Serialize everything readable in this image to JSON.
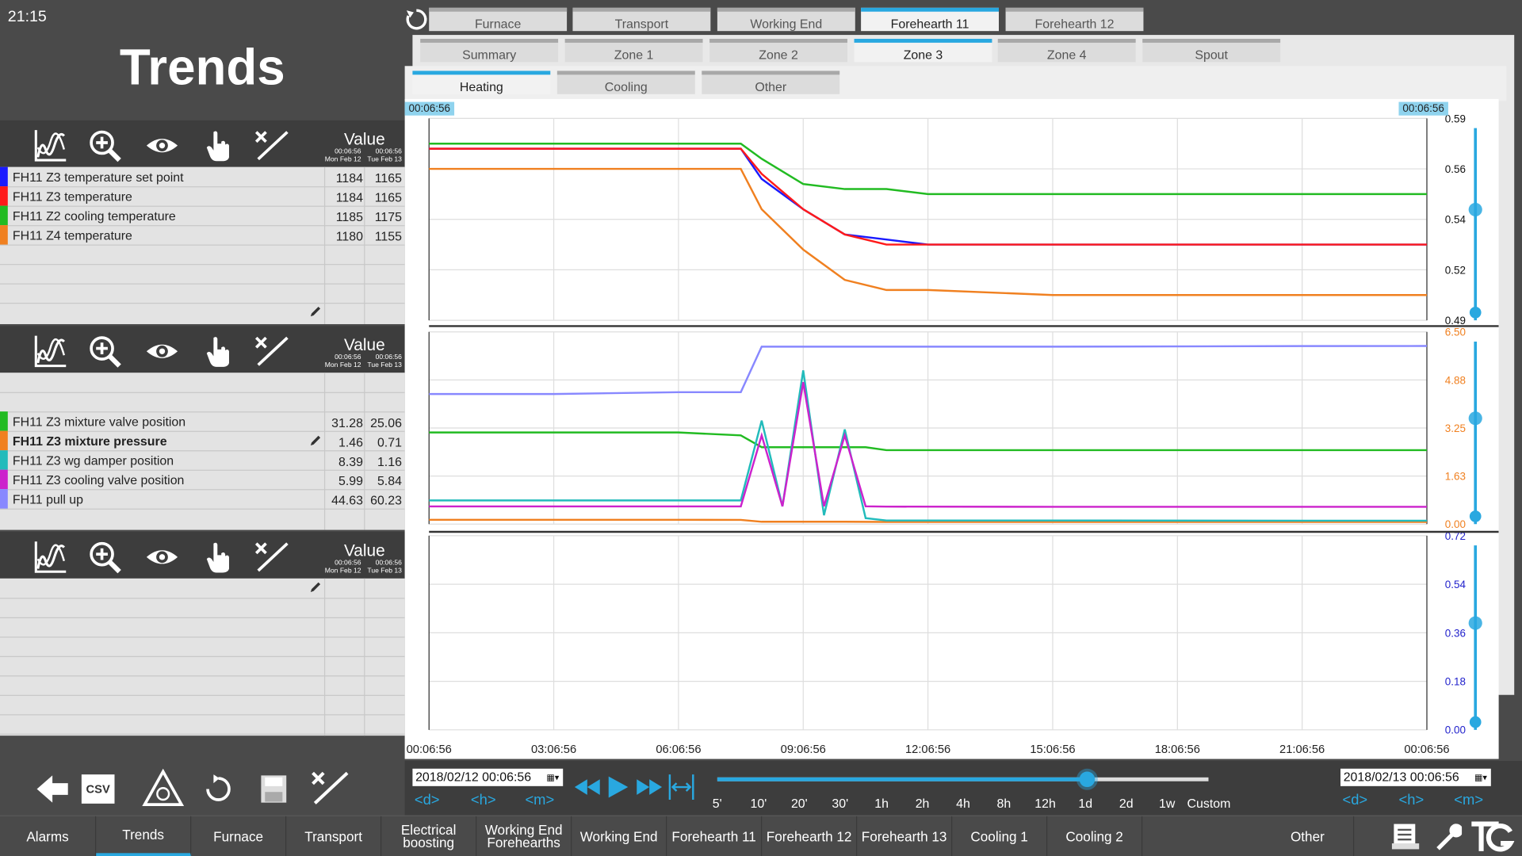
{
  "clock": "21:15",
  "page_title": "Trends",
  "top_tabs": [
    "Furnace",
    "Transport",
    "Working End",
    "Forehearth 11",
    "Forehearth 12"
  ],
  "zone_tabs": [
    "Summary",
    "Zone 1",
    "Zone 2",
    "Zone 3",
    "Zone 4",
    "Spout"
  ],
  "sub_tabs": [
    "Heating",
    "Cooling",
    "Other"
  ],
  "active": {
    "top": "Forehearth 11",
    "zone": "Zone 3",
    "sub": "Heating"
  },
  "cursor_time_left": "00:06:56",
  "cursor_time_right": "00:06:56",
  "value_header": {
    "title": "Value",
    "t1": "00:06:56",
    "d1": "Mon Feb 12",
    "t2": "00:06:56",
    "d2": "Tue Feb 13"
  },
  "panel1_rows": [
    {
      "label": "FH11 Z3 temperature set point",
      "color": "#1a1aff",
      "v1": "1184",
      "v2": "1165"
    },
    {
      "label": "FH11 Z3 temperature",
      "color": "#ff1a1a",
      "v1": "1184",
      "v2": "1165"
    },
    {
      "label": "FH11 Z2 cooling temperature",
      "color": "#22bb22",
      "v1": "1185",
      "v2": "1175"
    },
    {
      "label": "FH11 Z4 temperature",
      "color": "#f08020",
      "v1": "1180",
      "v2": "1155"
    }
  ],
  "panel2_rows": [
    {
      "label": "FH11 Z3 mixture valve position",
      "color": "#22bb22",
      "v1": "31.28",
      "v2": "25.06"
    },
    {
      "label": "FH11 Z3 mixture pressure",
      "color": "#f08020",
      "v1": "1.46",
      "v2": "0.71"
    },
    {
      "label": "FH11 Z3 wg damper position",
      "color": "#22bbbb",
      "v1": "8.39",
      "v2": "1.16"
    },
    {
      "label": "FH11 Z3 cooling valve position",
      "color": "#cc22cc",
      "v1": "5.99",
      "v2": "5.84"
    },
    {
      "label": "FH11 pull up",
      "color": "#8888ff",
      "v1": "44.63",
      "v2": "60.23"
    }
  ],
  "x_ticks": [
    "00:06:56",
    "03:06:56",
    "06:06:56",
    "09:06:56",
    "12:06:56",
    "15:06:56",
    "18:06:56",
    "21:06:56",
    "00:06:56"
  ],
  "axis1_ticks": [
    "0.59",
    "0.56",
    "0.54",
    "0.52",
    "0.49"
  ],
  "axis2_ticks": [
    "6.50",
    "4.88",
    "3.25",
    "1.63",
    "0.00"
  ],
  "axis3_ticks": [
    "0.72",
    "0.54",
    "0.36",
    "0.18",
    "0.00"
  ],
  "colors": {
    "axis2": "#f08020",
    "axis3": "#2222cc",
    "accent": "#29a8e0"
  },
  "date_start": "2018/02/12 00:06:56",
  "date_end": "2018/02/13 00:06:56",
  "nav_units": [
    "d",
    "h",
    "m"
  ],
  "time_scales": [
    "5'",
    "10'",
    "20'",
    "30'",
    "1h",
    "2h",
    "4h",
    "8h",
    "12h",
    "1d",
    "2d",
    "1w",
    "Custom"
  ],
  "selected_scale": "1d",
  "csv_label": "CSV",
  "footer_items": [
    "Alarms",
    "Trends",
    "Furnace",
    "Transport",
    "Electrical boosting",
    "Working End Forehearths",
    "Working End",
    "Forehearth 11",
    "Forehearth 12",
    "Forehearth 13",
    "Cooling 1",
    "Cooling 2",
    "Other"
  ],
  "chart_data": [
    {
      "type": "line",
      "x": [
        "00:06:56",
        "03:06:56",
        "06:06:56",
        "07:36:56",
        "08:06:56",
        "09:06:56",
        "10:06:56",
        "11:06:56",
        "12:06:56",
        "15:06:56",
        "18:06:56",
        "21:06:56",
        "00:06:56"
      ],
      "series": [
        {
          "name": "FH11 Z3 temperature set point",
          "values": [
            1184,
            1184,
            1184,
            1184,
            1178,
            1172,
            1167,
            1166,
            1165,
            1165,
            1165,
            1165,
            1165
          ]
        },
        {
          "name": "FH11 Z3 temperature",
          "values": [
            1184,
            1184,
            1184,
            1184,
            1179,
            1172,
            1167,
            1165,
            1165,
            1165,
            1165,
            1165,
            1165
          ]
        },
        {
          "name": "FH11 Z2 cooling temperature",
          "values": [
            1185,
            1185,
            1185,
            1185,
            1182,
            1177,
            1176,
            1176,
            1175,
            1175,
            1175,
            1175,
            1175
          ]
        },
        {
          "name": "FH11 Z4 temperature",
          "values": [
            1180,
            1180,
            1180,
            1180,
            1172,
            1164,
            1158,
            1156,
            1156,
            1155,
            1155,
            1155,
            1155
          ]
        }
      ],
      "ylim": [
        1150,
        1190
      ]
    },
    {
      "type": "line",
      "x": [
        "00:06:56",
        "03:06:56",
        "06:06:56",
        "07:36:56",
        "08:06:56",
        "08:36:56",
        "09:06:56",
        "09:36:56",
        "10:06:56",
        "10:36:56",
        "11:06:56",
        "15:06:56",
        "21:06:56",
        "00:06:56"
      ],
      "series": [
        {
          "name": "FH11 Z3 mixture valve position",
          "values": [
            31,
            31,
            31,
            30,
            26,
            26,
            26,
            26,
            26,
            26,
            25,
            25,
            25,
            25
          ]
        },
        {
          "name": "FH11 Z3 mixture pressure",
          "values": [
            1.46,
            1.46,
            1.46,
            1.4,
            0.8,
            0.8,
            0.8,
            0.8,
            0.8,
            0.75,
            0.72,
            0.71,
            0.71,
            0.71
          ]
        },
        {
          "name": "FH11 Z3 wg damper position",
          "values": [
            8,
            8,
            8,
            8,
            35,
            6,
            52,
            3,
            32,
            2,
            1.2,
            1.2,
            1.16,
            1.16
          ]
        },
        {
          "name": "FH11 Z3 cooling valve position",
          "values": [
            5.99,
            5.99,
            5.99,
            5.99,
            30,
            6,
            48,
            6,
            30,
            6,
            5.9,
            5.85,
            5.84,
            5.84
          ]
        },
        {
          "name": "FH11 pull up",
          "values": [
            44,
            44,
            44.6,
            44.6,
            60,
            60,
            60,
            60,
            60,
            60,
            60,
            60,
            60.2,
            60.23
          ]
        }
      ]
    },
    {
      "type": "line",
      "series": []
    }
  ]
}
